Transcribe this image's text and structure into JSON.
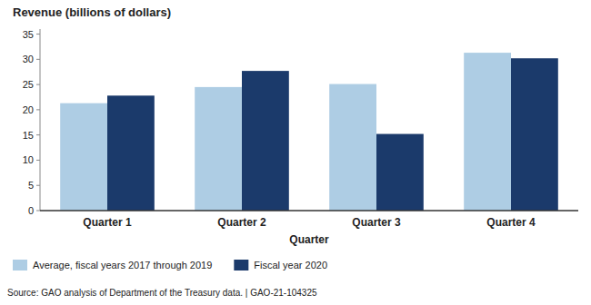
{
  "chart_data": {
    "type": "bar",
    "ylabel": "Revenue (billions of dollars)",
    "xlabel": "Quarter",
    "categories": [
      "Quarter 1",
      "Quarter 2",
      "Quarter 3",
      "Quarter 4"
    ],
    "series": [
      {
        "name": "Average, fiscal years 2017 through 2019",
        "color": "#aecde4",
        "values": [
          21.3,
          24.5,
          25.1,
          31.3
        ]
      },
      {
        "name": "Fiscal year 2020",
        "color": "#1b3a6b",
        "values": [
          22.8,
          27.7,
          15.2,
          30.2
        ]
      }
    ],
    "ylim": [
      0,
      36
    ],
    "yticks": [
      0,
      5,
      10,
      15,
      20,
      25,
      30,
      35
    ],
    "grid": false,
    "legend": "bottom",
    "annotations": [
      "Source: GAO analysis of Department of the Treasury data.  |  GAO-21-104325"
    ]
  }
}
